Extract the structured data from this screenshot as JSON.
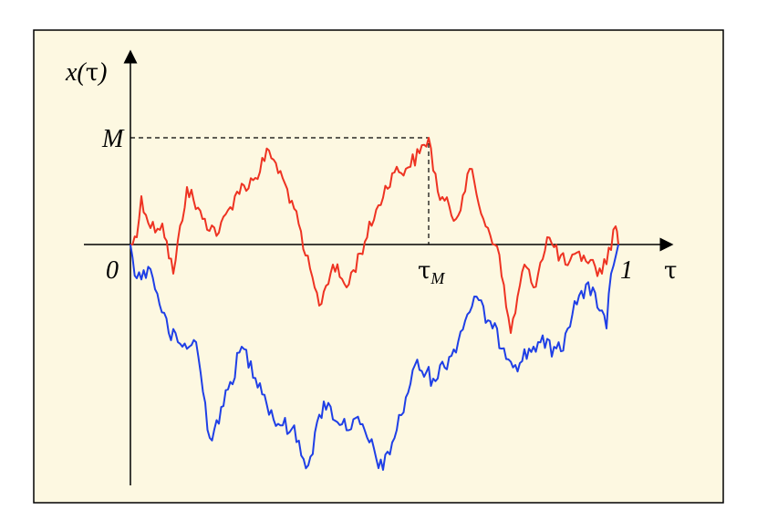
{
  "labels": {
    "y_axis": "x(",
    "y_axis_tau": "τ",
    "y_axis_close": ")",
    "max": "M",
    "origin": "0",
    "end": "1",
    "x_axis": "τ",
    "tau_m": "τ",
    "tau_m_sub": "M"
  }
}
